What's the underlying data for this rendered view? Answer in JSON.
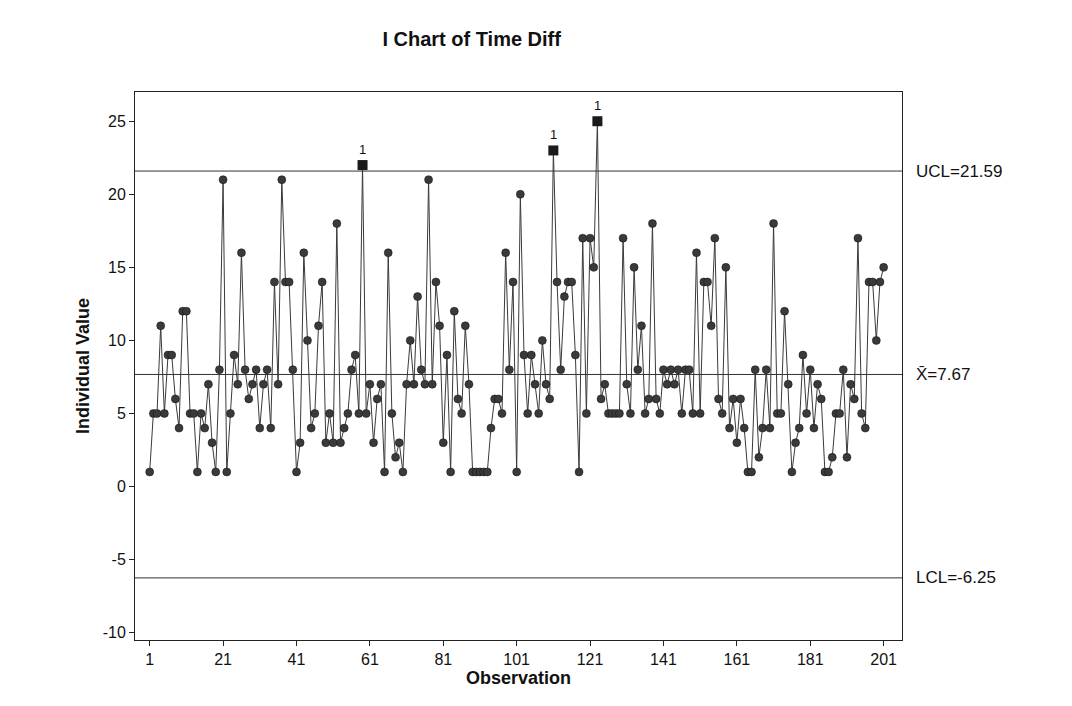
{
  "chart_data": {
    "type": "line",
    "title": "I Chart of Time Diff",
    "x_label": "Observation",
    "y_label": "Individual Value",
    "x": [
      1,
      2,
      3,
      4,
      5,
      6,
      7,
      8,
      9,
      10,
      11,
      12,
      13,
      14,
      15,
      16,
      17,
      18,
      19,
      20,
      21,
      22,
      23,
      24,
      25,
      26,
      27,
      28,
      29,
      30,
      31,
      32,
      33,
      34,
      35,
      36,
      37,
      38,
      39,
      40,
      41,
      42,
      43,
      44,
      45,
      46,
      47,
      48,
      49,
      50,
      51,
      52,
      53,
      54,
      55,
      56,
      57,
      58,
      59,
      60,
      61,
      62,
      63,
      64,
      65,
      66,
      67,
      68,
      69,
      70,
      71,
      72,
      73,
      74,
      75,
      76,
      77,
      78,
      79,
      80,
      81,
      82,
      83,
      84,
      85,
      86,
      87,
      88,
      89,
      90,
      91,
      92,
      93,
      94,
      95,
      96,
      97,
      98,
      99,
      100,
      101,
      102,
      103,
      104,
      105,
      106,
      107,
      108,
      109,
      110,
      111,
      112,
      113,
      114,
      115,
      116,
      117,
      118,
      119,
      120,
      121,
      122,
      123,
      124,
      125,
      126,
      127,
      128,
      129,
      130,
      131,
      132,
      133,
      134,
      135,
      136,
      137,
      138,
      139,
      140,
      141,
      142,
      143,
      144,
      145,
      146,
      147,
      148,
      149,
      150,
      151,
      152,
      153,
      154,
      155,
      156,
      157,
      158,
      159,
      160,
      161,
      162,
      163,
      164,
      165,
      166,
      167,
      168,
      169,
      170,
      171,
      172,
      173,
      174,
      175,
      176,
      177,
      178,
      179,
      180,
      181,
      182,
      183,
      184,
      185,
      186,
      187,
      188,
      189,
      190,
      191,
      192,
      193,
      194,
      195,
      196,
      197,
      198,
      199,
      200,
      201
    ],
    "values": [
      1,
      5,
      5,
      11,
      5,
      9,
      9,
      6,
      4,
      12,
      12,
      5,
      5,
      1,
      5,
      4,
      7,
      3,
      1,
      8,
      21,
      1,
      5,
      9,
      7,
      16,
      8,
      6,
      7,
      8,
      4,
      7,
      8,
      4,
      14,
      7,
      21,
      14,
      14,
      8,
      1,
      3,
      16,
      10,
      4,
      5,
      11,
      14,
      3,
      5,
      3,
      18,
      3,
      4,
      5,
      8,
      9,
      5,
      22,
      5,
      7,
      3,
      6,
      7,
      1,
      16,
      5,
      2,
      3,
      1,
      7,
      10,
      7,
      13,
      8,
      7,
      21,
      7,
      14,
      11,
      3,
      9,
      1,
      12,
      6,
      5,
      11,
      7,
      1,
      1,
      1,
      1,
      1,
      4,
      6,
      6,
      5,
      16,
      8,
      14,
      1,
      20,
      9,
      5,
      9,
      7,
      5,
      10,
      7,
      6,
      23,
      14,
      8,
      13,
      14,
      14,
      9,
      1,
      17,
      5,
      17,
      15,
      25,
      6,
      7,
      5,
      5,
      5,
      5,
      17,
      7,
      5,
      15,
      8,
      11,
      5,
      6,
      18,
      6,
      5,
      8,
      7,
      8,
      7,
      8,
      5,
      8,
      8,
      5,
      16,
      5,
      14,
      14,
      11,
      17,
      6,
      5,
      15,
      4,
      6,
      3,
      6,
      4,
      1,
      1,
      8,
      2,
      4,
      8,
      4,
      18,
      5,
      5,
      12,
      7,
      1,
      3,
      4,
      9,
      5,
      8,
      4,
      7,
      6,
      1,
      1,
      2,
      5,
      5,
      8,
      2,
      7,
      6,
      17,
      5,
      4,
      14,
      14,
      10,
      14,
      15
    ],
    "color": "#3a3a3a",
    "marker": "circle",
    "reference_lines": [
      {
        "label": "UCL=21.59",
        "value": 21.59
      },
      {
        "label": "X̄=7.67",
        "value": 7.67
      },
      {
        "label": "LCL=-6.25",
        "value": -6.25
      }
    ],
    "annotations": [
      {
        "text": "1",
        "x": 59,
        "y": 22
      },
      {
        "text": "1",
        "x": 111,
        "y": 23
      },
      {
        "text": "1",
        "x": 123,
        "y": 25
      }
    ],
    "xlim": [
      -3,
      206
    ],
    "ylim": [
      -10.5,
      27
    ],
    "xticks": [
      1,
      21,
      41,
      61,
      81,
      101,
      121,
      141,
      161,
      181,
      201
    ],
    "yticks": [
      -10,
      -5,
      0,
      5,
      10,
      15,
      20,
      25
    ],
    "grid": false
  }
}
